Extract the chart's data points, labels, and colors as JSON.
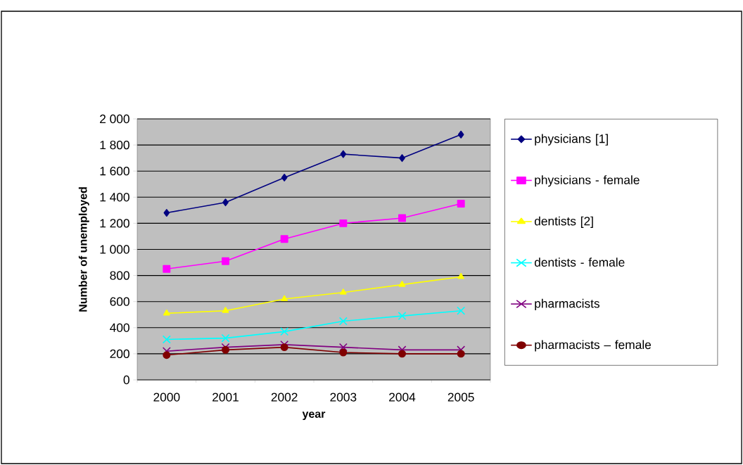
{
  "chart_data": {
    "type": "line",
    "xlabel": "year",
    "ylabel": "Number of unemployed",
    "categories": [
      "2000",
      "2001",
      "2002",
      "2003",
      "2004",
      "2005"
    ],
    "series": [
      {
        "name": "physicians [1]",
        "color": "#000080",
        "marker": "diamond",
        "values": [
          1280,
          1360,
          1550,
          1730,
          1700,
          1880
        ]
      },
      {
        "name": "physicians - female",
        "color": "#ff00ff",
        "marker": "square",
        "values": [
          850,
          910,
          1080,
          1200,
          1240,
          1350
        ]
      },
      {
        "name": "dentists [2]",
        "color": "#ffff00",
        "marker": "triangle",
        "values": [
          510,
          530,
          620,
          670,
          730,
          790
        ]
      },
      {
        "name": "dentists - female",
        "color": "#00ffff",
        "marker": "cross",
        "values": [
          310,
          320,
          370,
          450,
          490,
          530
        ]
      },
      {
        "name": "pharmacists",
        "color": "#800080",
        "marker": "cross",
        "values": [
          220,
          250,
          270,
          250,
          230,
          230
        ]
      },
      {
        "name": "pharmacists – female",
        "color": "#800000",
        "marker": "circle",
        "values": [
          190,
          230,
          250,
          210,
          200,
          200
        ]
      }
    ],
    "ylim": [
      0,
      2000
    ],
    "yticks": [
      0,
      200,
      400,
      600,
      800,
      {
        "value": 1000,
        "label": "1 000"
      },
      {
        "value": 1200,
        "label": "1 200"
      },
      {
        "value": 1400,
        "label": "1 400"
      },
      {
        "value": 1600,
        "label": "1 600"
      },
      {
        "value": 1800,
        "label": "1 800"
      },
      {
        "value": 2000,
        "label": "2 000"
      }
    ],
    "grid": "y",
    "legend": "right",
    "line_style": "solid"
  }
}
